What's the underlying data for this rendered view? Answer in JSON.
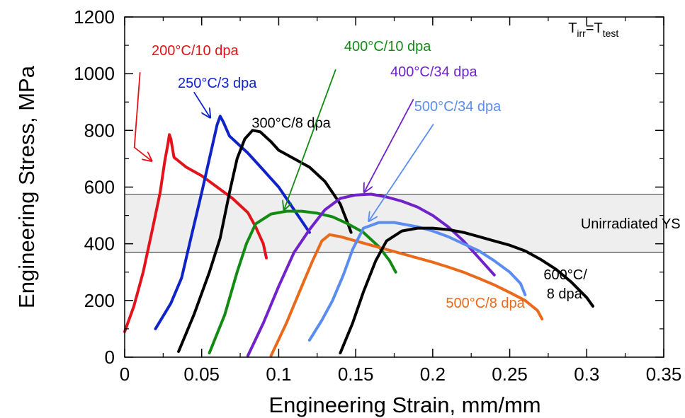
{
  "chart_data": {
    "type": "line",
    "xlabel": "Engineering Strain, mm/mm",
    "ylabel": "Engineering Stress,  MPa",
    "xlim": [
      0,
      0.35
    ],
    "ylim": [
      0,
      1200
    ],
    "xticks": [
      0,
      0.05,
      0.1,
      0.15,
      0.2,
      0.25,
      0.3,
      0.35
    ],
    "xtick_labels": [
      "0",
      "0.05",
      "0.1",
      "0.15",
      "0.2",
      "0.25",
      "0.3",
      "0.35"
    ],
    "yticks": [
      0,
      200,
      400,
      600,
      800,
      1000,
      1200
    ],
    "ytick_labels": [
      "0",
      "200",
      "400",
      "600",
      "800",
      "1000",
      "1200"
    ],
    "grid": false,
    "band": {
      "y0": 370,
      "y1": 575,
      "label": "Unirradiated YS",
      "color": "#eeeeee"
    },
    "condition_note": {
      "base": "T",
      "sub1": "irr",
      "eq": "=T",
      "sub2": "test"
    },
    "series": [
      {
        "name": "200°C/10 dpa",
        "color": "#e2131a",
        "points": [
          [
            0,
            90
          ],
          [
            0.006,
            180
          ],
          [
            0.012,
            300
          ],
          [
            0.018,
            450
          ],
          [
            0.023,
            580
          ],
          [
            0.026,
            690
          ],
          [
            0.028,
            750
          ],
          [
            0.029,
            785
          ],
          [
            0.03,
            770
          ],
          [
            0.032,
            705
          ],
          [
            0.04,
            670
          ],
          [
            0.05,
            640
          ],
          [
            0.06,
            600
          ],
          [
            0.07,
            560
          ],
          [
            0.08,
            510
          ],
          [
            0.085,
            460
          ],
          [
            0.09,
            400
          ],
          [
            0.092,
            350
          ]
        ]
      },
      {
        "name": "250°C/3 dpa",
        "color": "#1023c7",
        "points": [
          [
            0.02,
            100
          ],
          [
            0.03,
            190
          ],
          [
            0.037,
            280
          ],
          [
            0.043,
            420
          ],
          [
            0.05,
            580
          ],
          [
            0.055,
            700
          ],
          [
            0.06,
            820
          ],
          [
            0.062,
            850
          ],
          [
            0.064,
            830
          ],
          [
            0.068,
            780
          ],
          [
            0.08,
            720
          ],
          [
            0.09,
            660
          ],
          [
            0.1,
            600
          ],
          [
            0.11,
            520
          ],
          [
            0.12,
            440
          ]
        ]
      },
      {
        "name": "300°C/8 dpa",
        "color": "#000000",
        "points": [
          [
            0.035,
            20
          ],
          [
            0.045,
            150
          ],
          [
            0.055,
            300
          ],
          [
            0.062,
            420
          ],
          [
            0.068,
            580
          ],
          [
            0.073,
            700
          ],
          [
            0.078,
            770
          ],
          [
            0.083,
            800
          ],
          [
            0.088,
            795
          ],
          [
            0.095,
            760
          ],
          [
            0.1,
            730
          ],
          [
            0.11,
            700
          ],
          [
            0.12,
            670
          ],
          [
            0.13,
            620
          ],
          [
            0.14,
            540
          ],
          [
            0.145,
            470
          ],
          [
            0.147,
            440
          ]
        ]
      },
      {
        "name": "400°C/10 dpa",
        "color": "#138a13",
        "points": [
          [
            0.055,
            15
          ],
          [
            0.065,
            150
          ],
          [
            0.073,
            300
          ],
          [
            0.079,
            400
          ],
          [
            0.085,
            470
          ],
          [
            0.095,
            505
          ],
          [
            0.105,
            515
          ],
          [
            0.115,
            515
          ],
          [
            0.125,
            508
          ],
          [
            0.135,
            495
          ],
          [
            0.145,
            470
          ],
          [
            0.155,
            440
          ],
          [
            0.165,
            390
          ],
          [
            0.172,
            340
          ],
          [
            0.176,
            300
          ]
        ]
      },
      {
        "name": "400°C/34 dpa",
        "color": "#7122c9",
        "points": [
          [
            0.08,
            5
          ],
          [
            0.09,
            120
          ],
          [
            0.1,
            250
          ],
          [
            0.11,
            370
          ],
          [
            0.12,
            450
          ],
          [
            0.13,
            520
          ],
          [
            0.14,
            560
          ],
          [
            0.15,
            572
          ],
          [
            0.16,
            575
          ],
          [
            0.17,
            565
          ],
          [
            0.18,
            550
          ],
          [
            0.19,
            530
          ],
          [
            0.2,
            500
          ],
          [
            0.21,
            460
          ],
          [
            0.22,
            410
          ],
          [
            0.23,
            350
          ],
          [
            0.24,
            290
          ]
        ]
      },
      {
        "name": "500°C/8 dpa",
        "color": "#ea6a1c",
        "points": [
          [
            0.095,
            5
          ],
          [
            0.105,
            120
          ],
          [
            0.115,
            250
          ],
          [
            0.122,
            340
          ],
          [
            0.128,
            410
          ],
          [
            0.133,
            432
          ],
          [
            0.14,
            425
          ],
          [
            0.15,
            410
          ],
          [
            0.16,
            395
          ],
          [
            0.17,
            380
          ],
          [
            0.18,
            365
          ],
          [
            0.19,
            350
          ],
          [
            0.2,
            335
          ],
          [
            0.21,
            318
          ],
          [
            0.22,
            300
          ],
          [
            0.23,
            278
          ],
          [
            0.24,
            255
          ],
          [
            0.25,
            228
          ],
          [
            0.26,
            200
          ],
          [
            0.268,
            165
          ],
          [
            0.271,
            135
          ]
        ]
      },
      {
        "name": "500°C/34 dpa",
        "color": "#5b8df0",
        "points": [
          [
            0.12,
            60
          ],
          [
            0.128,
            130
          ],
          [
            0.135,
            200
          ],
          [
            0.142,
            290
          ],
          [
            0.148,
            380
          ],
          [
            0.155,
            455
          ],
          [
            0.165,
            475
          ],
          [
            0.175,
            475
          ],
          [
            0.19,
            460
          ],
          [
            0.2,
            445
          ],
          [
            0.21,
            425
          ],
          [
            0.22,
            400
          ],
          [
            0.23,
            375
          ],
          [
            0.24,
            340
          ],
          [
            0.25,
            300
          ],
          [
            0.257,
            260
          ],
          [
            0.26,
            220
          ]
        ]
      },
      {
        "name": "600°C/\n8 dpa",
        "color": "#000000",
        "points": [
          [
            0.14,
            15
          ],
          [
            0.148,
            120
          ],
          [
            0.155,
            230
          ],
          [
            0.163,
            340
          ],
          [
            0.17,
            410
          ],
          [
            0.18,
            445
          ],
          [
            0.19,
            455
          ],
          [
            0.2,
            455
          ],
          [
            0.21,
            450
          ],
          [
            0.22,
            440
          ],
          [
            0.23,
            425
          ],
          [
            0.24,
            410
          ],
          [
            0.25,
            395
          ],
          [
            0.26,
            375
          ],
          [
            0.27,
            345
          ],
          [
            0.28,
            310
          ],
          [
            0.29,
            265
          ],
          [
            0.3,
            210
          ],
          [
            0.304,
            180
          ]
        ]
      }
    ],
    "annotations": [
      {
        "text": "200°C/10 dpa",
        "color": "#e2131a",
        "x": 0.0175,
        "y": 1065,
        "arrow": [
          [
            0.01,
            1005
          ],
          [
            0.0063,
            740
          ],
          [
            0.0175,
            692
          ]
        ]
      },
      {
        "text": "250°C/3 dpa",
        "color": "#1023c7",
        "x": 0.0345,
        "y": 950,
        "arrow": [
          [
            0.045,
            935
          ],
          [
            0.0555,
            845
          ]
        ]
      },
      {
        "text": "300°C/8 dpa",
        "color": "#000000",
        "x": 0.0825,
        "y": 810,
        "arrow": null
      },
      {
        "text": "400°C/10 dpa",
        "color": "#138a13",
        "x": 0.1425,
        "y": 1080,
        "arrow": [
          [
            0.137,
            1015
          ],
          [
            0.1035,
            520
          ]
        ]
      },
      {
        "text": "400°C/34 dpa",
        "color": "#7122c9",
        "x": 0.1725,
        "y": 990,
        "arrow": [
          [
            0.1875,
            910
          ],
          [
            0.1555,
            582
          ]
        ]
      },
      {
        "text": "500°C/34 dpa",
        "color": "#5b8df0",
        "x": 0.188,
        "y": 868,
        "arrow": [
          [
            0.2005,
            822
          ],
          [
            0.1585,
            480
          ]
        ]
      },
      {
        "text": "500°C/8 dpa",
        "color": "#ea6a1c",
        "x": 0.2085,
        "y": 175,
        "arrow": null
      },
      {
        "text": "600°C/",
        "color": "#000000",
        "x": 0.272,
        "y": 275,
        "arrow": null
      },
      {
        "text": "8 dpa",
        "color": "#000000",
        "x": 0.274,
        "y": 207,
        "arrow": null
      }
    ]
  }
}
